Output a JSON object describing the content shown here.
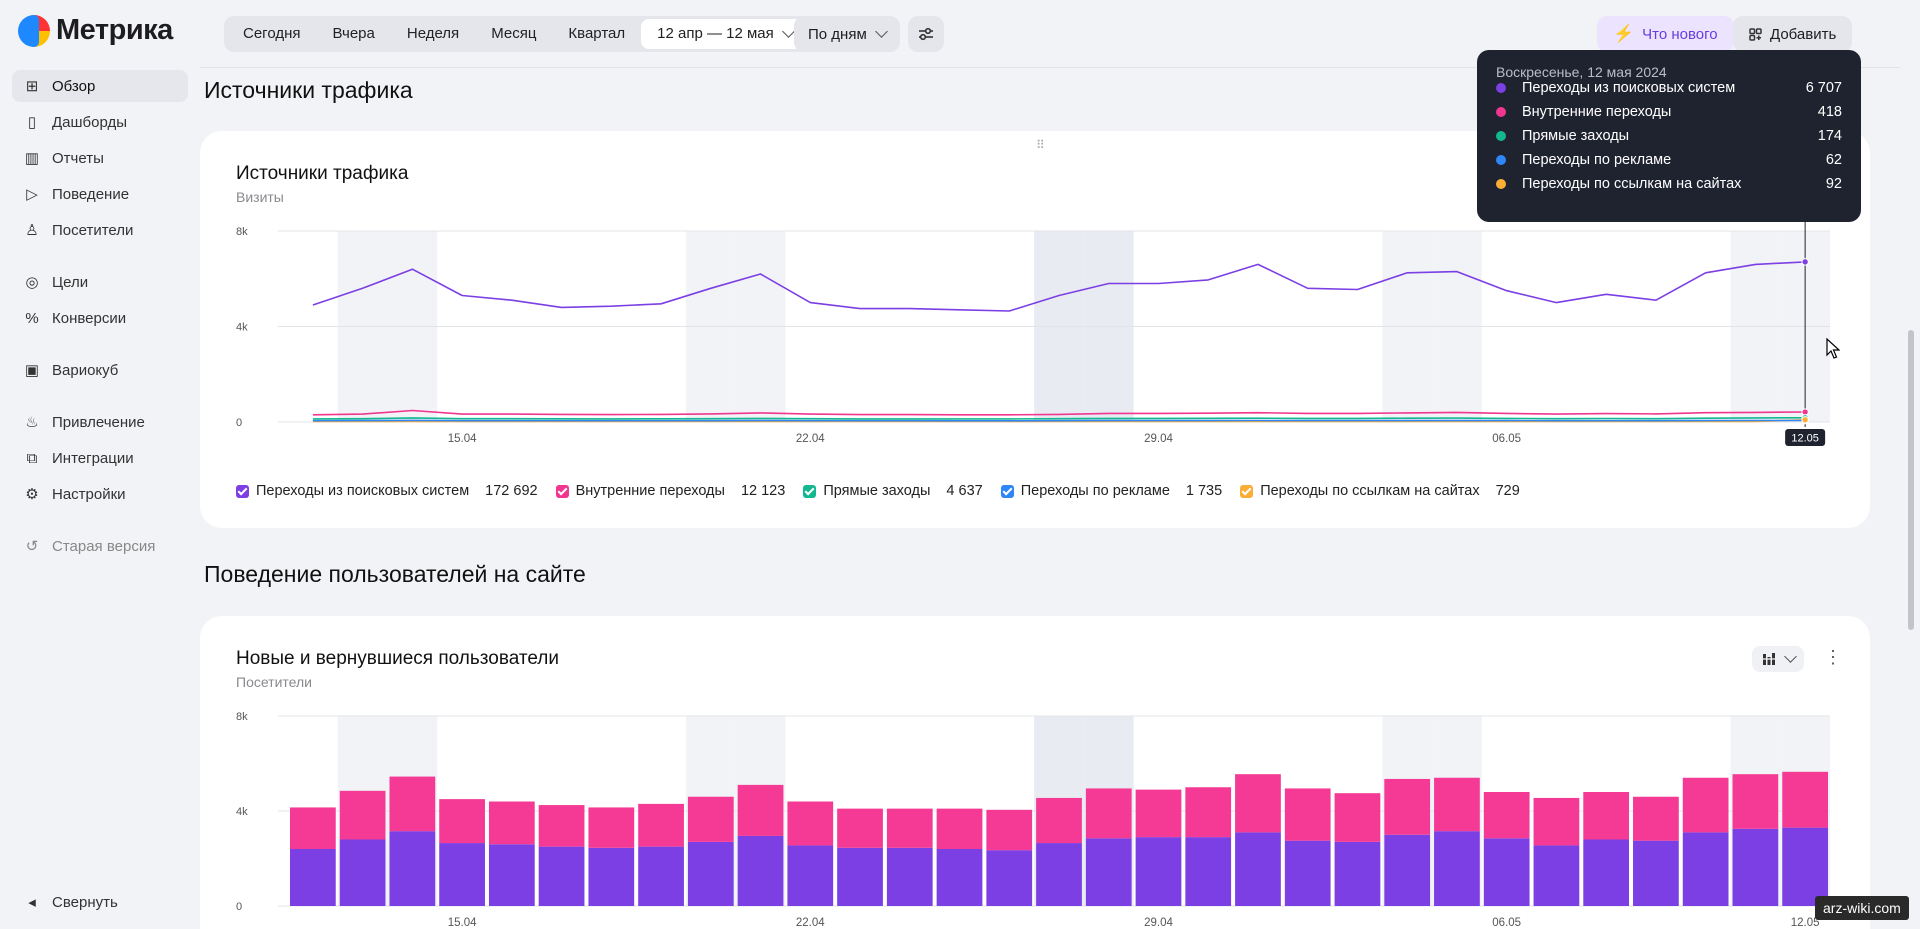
{
  "app": {
    "name": "Метрика"
  },
  "sidebar": {
    "items": [
      {
        "label": "Обзор",
        "icon": "grid-icon",
        "active": true
      },
      {
        "label": "Дашборды",
        "icon": "dashboard-icon"
      },
      {
        "label": "Отчеты",
        "icon": "bar-chart-icon"
      },
      {
        "label": "Поведение",
        "icon": "play-icon"
      },
      {
        "label": "Посетители",
        "icon": "user-icon"
      },
      {
        "label": "Цели",
        "icon": "target-icon"
      },
      {
        "label": "Конверсии",
        "icon": "percent-icon"
      },
      {
        "label": "Вариокуб",
        "icon": "cube-icon"
      },
      {
        "label": "Привлечение",
        "icon": "flame-icon"
      },
      {
        "label": "Интеграции",
        "icon": "integrations-icon"
      },
      {
        "label": "Настройки",
        "icon": "gear-icon"
      },
      {
        "label": "Старая версия",
        "icon": "history-icon"
      }
    ],
    "collapse_label": "Свернуть"
  },
  "toolbar": {
    "periods": [
      "Сегодня",
      "Вчера",
      "Неделя",
      "Месяц",
      "Квартал"
    ],
    "date_range": "12 апр — 12 мая",
    "grouping": "По дням",
    "whats_new": "Что нового",
    "add": "Добавить"
  },
  "sections": {
    "traffic": "Источники трафика",
    "behavior": "Поведение пользователей на сайте"
  },
  "traffic_card": {
    "title": "Источники трафика",
    "subtitle": "Визиты",
    "hover_label": "12.05",
    "legend": [
      {
        "label": "Переходы из поисковых систем",
        "total": "172 692",
        "color": "#7b3fe4"
      },
      {
        "label": "Внутренние переходы",
        "total": "12 123",
        "color": "#f0368f"
      },
      {
        "label": "Прямые заходы",
        "total": "4 637",
        "color": "#14b890"
      },
      {
        "label": "Переходы по рекламе",
        "total": "1 735",
        "color": "#2f86f6"
      },
      {
        "label": "Переходы по ссылкам на сайтах",
        "total": "729",
        "color": "#fbae35"
      }
    ]
  },
  "tooltip": {
    "date": "Воскресенье, 12 мая 2024",
    "rows": [
      {
        "label": "Переходы из поисковых систем",
        "value": "6 707",
        "color": "#7b3fe4"
      },
      {
        "label": "Внутренние переходы",
        "value": "418",
        "color": "#f0368f"
      },
      {
        "label": "Прямые заходы",
        "value": "174",
        "color": "#14b890"
      },
      {
        "label": "Переходы по рекламе",
        "value": "62",
        "color": "#2f86f6"
      },
      {
        "label": "Переходы по ссылкам на сайтах",
        "value": "92",
        "color": "#fbae35"
      }
    ]
  },
  "users_card": {
    "title": "Новые и вернувшиеся пользователи",
    "subtitle": "Посетители"
  },
  "chart_data": [
    {
      "type": "line",
      "title": "Источники трафика",
      "subtitle": "Визиты",
      "x": [
        "12.04",
        "13.04",
        "14.04",
        "15.04",
        "16.04",
        "17.04",
        "18.04",
        "19.04",
        "20.04",
        "21.04",
        "22.04",
        "23.04",
        "24.04",
        "25.04",
        "26.04",
        "27.04",
        "28.04",
        "29.04",
        "30.04",
        "01.05",
        "02.05",
        "03.05",
        "04.05",
        "05.05",
        "06.05",
        "07.05",
        "08.05",
        "09.05",
        "10.05",
        "11.05",
        "12.05"
      ],
      "x_ticks": [
        "15.04",
        "22.04",
        "29.04",
        "06.05"
      ],
      "ylim": [
        0,
        8000
      ],
      "y_ticks": [
        "0",
        "4k",
        "8k"
      ],
      "series": [
        {
          "name": "Переходы из поисковых систем",
          "color": "#7b3fe4",
          "values": [
            4900,
            5600,
            6400,
            5300,
            5100,
            4800,
            4850,
            4950,
            5600,
            6200,
            5000,
            4750,
            4750,
            4700,
            4650,
            5300,
            5800,
            5800,
            5950,
            6600,
            5600,
            5550,
            6250,
            6300,
            5500,
            5000,
            5350,
            5100,
            6250,
            6600,
            6707
          ]
        },
        {
          "name": "Внутренние переходы",
          "color": "#f0368f",
          "values": [
            300,
            330,
            480,
            330,
            330,
            320,
            310,
            320,
            340,
            380,
            330,
            310,
            310,
            300,
            300,
            320,
            360,
            360,
            370,
            390,
            360,
            360,
            380,
            400,
            360,
            330,
            350,
            340,
            390,
            400,
            418
          ]
        },
        {
          "name": "Прямые заходы",
          "color": "#14b890",
          "values": [
            130,
            140,
            170,
            140,
            140,
            135,
            130,
            135,
            140,
            150,
            140,
            130,
            130,
            130,
            130,
            140,
            150,
            150,
            155,
            160,
            150,
            150,
            160,
            165,
            150,
            140,
            145,
            140,
            160,
            170,
            174
          ]
        },
        {
          "name": "Переходы по рекламе",
          "color": "#2f86f6",
          "values": [
            55,
            58,
            65,
            56,
            55,
            54,
            53,
            54,
            56,
            60,
            56,
            53,
            53,
            52,
            52,
            55,
            58,
            58,
            59,
            62,
            58,
            57,
            59,
            60,
            57,
            55,
            56,
            55,
            60,
            61,
            62
          ]
        },
        {
          "name": "Переходы по ссылкам на сайтах",
          "color": "#fbae35",
          "values": [
            20,
            22,
            25,
            22,
            22,
            21,
            21,
            22,
            22,
            24,
            22,
            21,
            21,
            21,
            21,
            22,
            23,
            23,
            24,
            25,
            23,
            23,
            24,
            25,
            23,
            22,
            23,
            22,
            24,
            25,
            92
          ]
        }
      ]
    },
    {
      "type": "bar",
      "title": "Новые и вернувшиеся пользователи",
      "subtitle": "Посетители",
      "stacked": true,
      "categories": [
        "12.04",
        "13.04",
        "14.04",
        "15.04",
        "16.04",
        "17.04",
        "18.04",
        "19.04",
        "20.04",
        "21.04",
        "22.04",
        "23.04",
        "24.04",
        "25.04",
        "26.04",
        "27.04",
        "28.04",
        "29.04",
        "30.04",
        "01.05",
        "02.05",
        "03.05",
        "04.05",
        "05.05",
        "06.05",
        "07.05",
        "08.05",
        "09.05",
        "10.05",
        "11.05",
        "12.05"
      ],
      "x_ticks": [
        "15.04",
        "22.04",
        "29.04",
        "06.05",
        "12.05"
      ],
      "ylim": [
        0,
        8000
      ],
      "y_ticks": [
        "0",
        "4k",
        "8k"
      ],
      "series": [
        {
          "color": "#7b3fe4",
          "values": [
            2400,
            2800,
            3150,
            2650,
            2600,
            2500,
            2450,
            2500,
            2700,
            2950,
            2550,
            2450,
            2450,
            2400,
            2350,
            2650,
            2850,
            2900,
            2900,
            3100,
            2750,
            2700,
            3000,
            3150,
            2850,
            2550,
            2800,
            2750,
            3100,
            3250,
            3300
          ]
        },
        {
          "color": "#f43a94",
          "values": [
            1750,
            2050,
            2300,
            1850,
            1800,
            1750,
            1700,
            1800,
            1900,
            2150,
            1850,
            1650,
            1650,
            1700,
            1700,
            1900,
            2100,
            2000,
            2100,
            2450,
            2200,
            2050,
            2350,
            2250,
            1950,
            2000,
            2000,
            1850,
            2300,
            2300,
            2350
          ]
        }
      ]
    }
  ],
  "watermark": "arz-wiki.com"
}
